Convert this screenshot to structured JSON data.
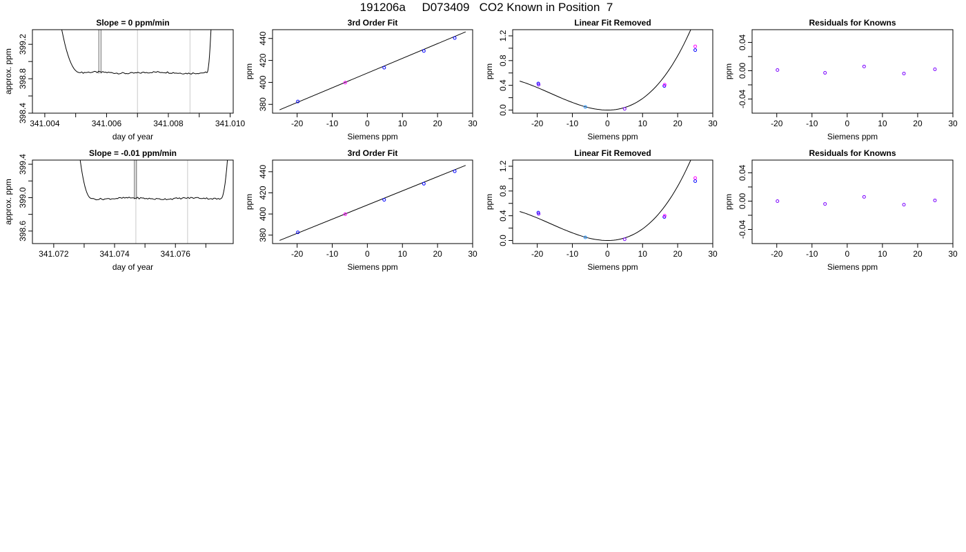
{
  "page": {
    "title": "191206a     D073409   CO2 Known in Position  7"
  },
  "colors": {
    "axis": "#000000",
    "trace": "#000000",
    "spike": "#808080",
    "marker_line": "#c8c8c8",
    "point_blue": "#0000ff",
    "point_magenta": "#ff00ff",
    "point_purple": "#7a00ff",
    "point_cyan": "#1e90ff"
  },
  "chart_data": [
    {
      "id": "row1-raw",
      "type": "line",
      "title": "Slope =  0  ppm/min",
      "xlabel": "day of year",
      "ylabel": "approx. ppm",
      "xlim": [
        341.0036,
        341.0101
      ],
      "ylim": [
        398.4,
        399.37
      ],
      "xticks": [
        341.004,
        341.005,
        341.006,
        341.007,
        341.008,
        341.009,
        341.01
      ],
      "xtick_labels": [
        "341.004",
        "",
        "341.006",
        "",
        "341.008",
        "",
        "341.010"
      ],
      "yticks": [
        398.4,
        398.6,
        398.8,
        399.0,
        399.2
      ],
      "ytick_labels": [
        "398.4",
        "",
        "398.8",
        "",
        "399.2"
      ],
      "grid": false,
      "vlines": [
        341.007,
        341.0087
      ],
      "spikes": [
        341.00575,
        341.00582
      ],
      "trace": {
        "x_start": 341.00455,
        "x_end": 341.00938,
        "left_edge": [
          341.00455,
          399.37
        ],
        "plateau_start": 341.00515,
        "plateau_end": 341.00925,
        "right_edge": [
          341.00938,
          399.37
        ],
        "plateau_level": 398.87,
        "noise": 0.012
      }
    },
    {
      "id": "row1-fit",
      "type": "scatter",
      "title": "3rd Order Fit",
      "xlabel": "Siemens ppm",
      "ylabel": "ppm",
      "xlim": [
        -27,
        30
      ],
      "ylim": [
        372,
        448
      ],
      "xticks": [
        -20,
        -10,
        0,
        10,
        20,
        30
      ],
      "xtick_labels": [
        "-20",
        "-10",
        "0",
        "10",
        "20",
        "30"
      ],
      "yticks": [
        380,
        400,
        420,
        440
      ],
      "ytick_labels": [
        "380",
        "400",
        "420",
        "440"
      ],
      "line": {
        "x": [
          -25,
          28
        ],
        "y": [
          375,
          446
        ]
      },
      "points": [
        {
          "x": -19.8,
          "y": 382.6,
          "color": "point_blue"
        },
        {
          "x": -6.3,
          "y": 399.8,
          "color": "point_magenta"
        },
        {
          "x": 4.8,
          "y": 413.4,
          "color": "point_blue"
        },
        {
          "x": 16.1,
          "y": 428.6,
          "color": "point_blue"
        },
        {
          "x": 24.9,
          "y": 440.4,
          "color": "point_blue"
        }
      ]
    },
    {
      "id": "row1-linear-removed",
      "type": "scatter",
      "title": "Linear Fit Removed",
      "xlabel": "Siemens ppm",
      "ylabel": "ppm",
      "xlim": [
        -27,
        30
      ],
      "ylim": [
        -0.05,
        1.3
      ],
      "xticks": [
        -20,
        -10,
        0,
        10,
        20,
        30
      ],
      "xtick_labels": [
        "-20",
        "-10",
        "0",
        "10",
        "20",
        "30"
      ],
      "yticks": [
        0.0,
        0.2,
        0.4,
        0.6,
        0.8,
        1.0,
        1.2
      ],
      "ytick_labels": [
        "0.0",
        "",
        "0.4",
        "",
        "0.8",
        "",
        "1.2"
      ],
      "curve": {
        "x_from": -25,
        "x_to": 28.5,
        "a": 0.00135,
        "b": 0.0,
        "c": 0.00155,
        "d": 3.2e-05
      },
      "points": [
        {
          "x": -19.7,
          "y": 0.43,
          "color": "point_blue"
        },
        {
          "x": -19.6,
          "y": 0.41,
          "color": "point_purple"
        },
        {
          "x": -6.3,
          "y": 0.05,
          "color": "point_cyan"
        },
        {
          "x": 4.9,
          "y": 0.02,
          "color": "point_purple"
        },
        {
          "x": 16.2,
          "y": 0.39,
          "color": "point_blue"
        },
        {
          "x": 16.3,
          "y": 0.41,
          "color": "point_magenta"
        },
        {
          "x": 25.0,
          "y": 0.97,
          "color": "point_blue"
        },
        {
          "x": 25.0,
          "y": 1.03,
          "color": "point_magenta"
        }
      ]
    },
    {
      "id": "row1-residuals",
      "type": "scatter",
      "title": "Residuals for Knowns",
      "xlabel": "Siemens ppm",
      "ylabel": "ppm",
      "xlim": [
        -27,
        30
      ],
      "ylim": [
        -0.06,
        0.058
      ],
      "xticks": [
        -20,
        -10,
        0,
        10,
        20,
        30
      ],
      "xtick_labels": [
        "-20",
        "-10",
        "0",
        "10",
        "20",
        "30"
      ],
      "yticks": [
        -0.04,
        0.0,
        0.04
      ],
      "ytick_labels": [
        "-0.04",
        "0.00",
        "0.04"
      ],
      "minor_yticks": [
        -0.02,
        0.02
      ],
      "points": [
        {
          "x": -19.8,
          "y": 0.001,
          "color": "point_purple"
        },
        {
          "x": -6.3,
          "y": -0.003,
          "color": "point_purple"
        },
        {
          "x": 4.8,
          "y": 0.006,
          "color": "point_purple"
        },
        {
          "x": 16.1,
          "y": -0.004,
          "color": "point_purple"
        },
        {
          "x": 24.9,
          "y": 0.002,
          "color": "point_purple"
        }
      ]
    },
    {
      "id": "row2-raw",
      "type": "line",
      "title": "Slope =  -0.01  ppm/min",
      "xlabel": "day of year",
      "ylabel": "approx. ppm",
      "xlim": [
        341.0713,
        341.0779
      ],
      "ylim": [
        398.45,
        399.45
      ],
      "xticks": [
        341.072,
        341.073,
        341.074,
        341.075,
        341.076,
        341.077
      ],
      "xtick_labels": [
        "341.072",
        "",
        "341.074",
        "",
        "341.076",
        ""
      ],
      "yticks": [
        398.6,
        398.8,
        399.0,
        399.2,
        399.4
      ],
      "ytick_labels": [
        "398.6",
        "",
        "399.0",
        "",
        "399.4"
      ],
      "grid": false,
      "vlines": [
        341.0747,
        341.0764
      ],
      "spikes": [
        341.07465,
        341.07472
      ],
      "trace": {
        "x_start": 341.07287,
        "x_end": 341.07771,
        "left_edge": [
          341.07287,
          399.45
        ],
        "plateau_start": 341.07325,
        "plateau_end": 341.0775,
        "right_edge": [
          341.07771,
          399.45
        ],
        "plateau_level": 398.99,
        "noise": 0.012
      }
    },
    {
      "id": "row2-fit",
      "type": "scatter",
      "title": "3rd Order Fit",
      "xlabel": "Siemens ppm",
      "ylabel": "ppm",
      "xlim": [
        -27,
        30
      ],
      "ylim": [
        372,
        451
      ],
      "xticks": [
        -20,
        -10,
        0,
        10,
        20,
        30
      ],
      "xtick_labels": [
        "-20",
        "-10",
        "0",
        "10",
        "20",
        "30"
      ],
      "yticks": [
        380,
        400,
        420,
        440
      ],
      "ytick_labels": [
        "380",
        "400",
        "420",
        "440"
      ],
      "line": {
        "x": [
          -25,
          28
        ],
        "y": [
          375,
          446
        ]
      },
      "points": [
        {
          "x": -19.8,
          "y": 382.6,
          "color": "point_blue"
        },
        {
          "x": -6.3,
          "y": 399.8,
          "color": "point_magenta"
        },
        {
          "x": 4.8,
          "y": 413.4,
          "color": "point_blue"
        },
        {
          "x": 16.1,
          "y": 428.6,
          "color": "point_blue"
        },
        {
          "x": 24.9,
          "y": 440.4,
          "color": "point_blue"
        }
      ]
    },
    {
      "id": "row2-linear-removed",
      "type": "scatter",
      "title": "Linear Fit Removed",
      "xlabel": "Siemens ppm",
      "ylabel": "ppm",
      "xlim": [
        -27,
        30
      ],
      "ylim": [
        -0.05,
        1.3
      ],
      "xticks": [
        -20,
        -10,
        0,
        10,
        20,
        30
      ],
      "xtick_labels": [
        "-20",
        "-10",
        "0",
        "10",
        "20",
        "30"
      ],
      "yticks": [
        0.0,
        0.2,
        0.4,
        0.6,
        0.8,
        1.0,
        1.2
      ],
      "ytick_labels": [
        "0.0",
        "",
        "0.4",
        "",
        "0.8",
        "",
        "1.2"
      ],
      "curve": {
        "x_from": -25,
        "x_to": 28.5,
        "a": 0.00135,
        "b": 0.0,
        "c": 0.00155,
        "d": 3.2e-05
      },
      "points": [
        {
          "x": -19.7,
          "y": 0.45,
          "color": "point_blue"
        },
        {
          "x": -19.6,
          "y": 0.43,
          "color": "point_purple"
        },
        {
          "x": -6.3,
          "y": 0.05,
          "color": "point_cyan"
        },
        {
          "x": 4.9,
          "y": 0.02,
          "color": "point_purple"
        },
        {
          "x": 16.2,
          "y": 0.38,
          "color": "point_blue"
        },
        {
          "x": 16.3,
          "y": 0.4,
          "color": "point_magenta"
        },
        {
          "x": 25.0,
          "y": 0.96,
          "color": "point_blue"
        },
        {
          "x": 25.0,
          "y": 1.01,
          "color": "point_magenta"
        }
      ]
    },
    {
      "id": "row2-residuals",
      "type": "scatter",
      "title": "Residuals for Knowns",
      "xlabel": "Siemens ppm",
      "ylabel": "ppm",
      "xlim": [
        -27,
        30
      ],
      "ylim": [
        -0.06,
        0.058
      ],
      "xticks": [
        -20,
        -10,
        0,
        10,
        20,
        30
      ],
      "xtick_labels": [
        "-20",
        "-10",
        "0",
        "10",
        "20",
        "30"
      ],
      "yticks": [
        -0.04,
        0.0,
        0.04
      ],
      "ytick_labels": [
        "-0.04",
        "0.00",
        "0.04"
      ],
      "minor_yticks": [
        -0.02,
        0.02
      ],
      "points": [
        {
          "x": -19.8,
          "y": 0.0,
          "color": "point_purple"
        },
        {
          "x": -6.3,
          "y": -0.004,
          "color": "point_purple"
        },
        {
          "x": 4.8,
          "y": 0.006,
          "color": "point_purple"
        },
        {
          "x": 16.1,
          "y": -0.005,
          "color": "point_purple"
        },
        {
          "x": 24.9,
          "y": 0.001,
          "color": "point_purple"
        }
      ]
    }
  ]
}
